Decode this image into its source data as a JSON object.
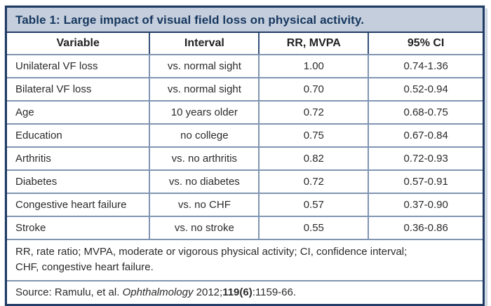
{
  "colors": {
    "outer_border": "#1f3a63",
    "title_background": "#c5cedd",
    "title_text": "#16375e",
    "grid_line": "#8095b2",
    "cell_text": "#2b2b2b",
    "page_background": "#ffffff"
  },
  "table": {
    "title": "Table 1: Large impact of visual field loss on physical activity.",
    "columns": [
      "Variable",
      "Interval",
      "RR, MVPA",
      "95% CI"
    ],
    "rows": [
      {
        "variable": "Unilateral VF loss",
        "interval": "vs. normal sight",
        "rr": "1.00",
        "ci": "0.74-1.36"
      },
      {
        "variable": "Bilateral VF loss",
        "interval": "vs. normal sight",
        "rr": "0.70",
        "ci": "0.52-0.94"
      },
      {
        "variable": "Age",
        "interval": "10 years older",
        "rr": "0.72",
        "ci": "0.68-0.75"
      },
      {
        "variable": "Education",
        "interval": "no college",
        "rr": "0.75",
        "ci": "0.67-0.84"
      },
      {
        "variable": "Arthritis",
        "interval": "vs. no arthritis",
        "rr": "0.82",
        "ci": "0.72-0.93"
      },
      {
        "variable": "Diabetes",
        "interval": "vs. no diabetes",
        "rr": "0.72",
        "ci": "0.57-0.91"
      },
      {
        "variable": "Congestive heart failure",
        "interval": "vs. no CHF",
        "rr": "0.57",
        "ci": "0.37-0.90"
      },
      {
        "variable": "Stroke",
        "interval": "vs. no stroke",
        "rr": "0.55",
        "ci": "0.36-0.86"
      }
    ],
    "footnote_lines": [
      "RR, rate ratio; MVPA, moderate or vigorous physical activity; CI, confidence interval;",
      "CHF, congestive heart failure."
    ],
    "source": {
      "prefix": "Source: Ramulu, et al. ",
      "journal": "Ophthalmology",
      "middle": " 2012;",
      "volume": "119(6)",
      "suffix": ":1159-66."
    }
  }
}
